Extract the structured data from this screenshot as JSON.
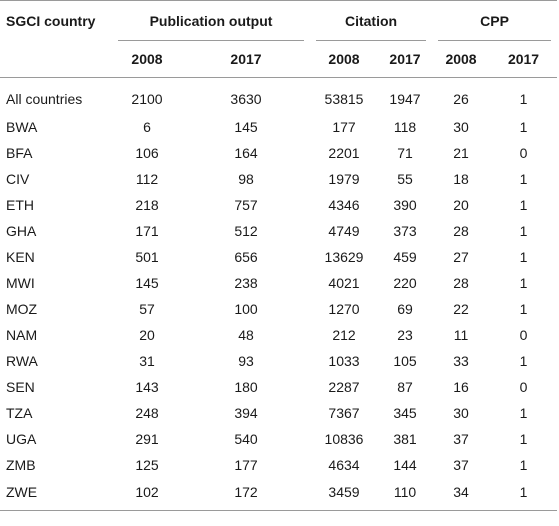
{
  "headers": {
    "country": "SGCI country",
    "groups": {
      "publication_output": "Publication output",
      "citation": "Citation",
      "cpp": "CPP"
    },
    "years": [
      "2008",
      "2017",
      "2008",
      "2017",
      "2008",
      "2017"
    ]
  },
  "rows": [
    {
      "country": "All countries",
      "pub_2008": "2100",
      "pub_2017": "3630",
      "cit_2008": "53815",
      "cit_2017": "1947",
      "cpp_2008": "26",
      "cpp_2017": "1"
    },
    {
      "country": "BWA",
      "pub_2008": "6",
      "pub_2017": "145",
      "cit_2008": "177",
      "cit_2017": "118",
      "cpp_2008": "30",
      "cpp_2017": "1"
    },
    {
      "country": "BFA",
      "pub_2008": "106",
      "pub_2017": "164",
      "cit_2008": "2201",
      "cit_2017": "71",
      "cpp_2008": "21",
      "cpp_2017": "0"
    },
    {
      "country": "CIV",
      "pub_2008": "112",
      "pub_2017": "98",
      "cit_2008": "1979",
      "cit_2017": "55",
      "cpp_2008": "18",
      "cpp_2017": "1"
    },
    {
      "country": "ETH",
      "pub_2008": "218",
      "pub_2017": "757",
      "cit_2008": "4346",
      "cit_2017": "390",
      "cpp_2008": "20",
      "cpp_2017": "1"
    },
    {
      "country": "GHA",
      "pub_2008": "171",
      "pub_2017": "512",
      "cit_2008": "4749",
      "cit_2017": "373",
      "cpp_2008": "28",
      "cpp_2017": "1"
    },
    {
      "country": "KEN",
      "pub_2008": "501",
      "pub_2017": "656",
      "cit_2008": "13629",
      "cit_2017": "459",
      "cpp_2008": "27",
      "cpp_2017": "1"
    },
    {
      "country": "MWI",
      "pub_2008": "145",
      "pub_2017": "238",
      "cit_2008": "4021",
      "cit_2017": "220",
      "cpp_2008": "28",
      "cpp_2017": "1"
    },
    {
      "country": "MOZ",
      "pub_2008": "57",
      "pub_2017": "100",
      "cit_2008": "1270",
      "cit_2017": "69",
      "cpp_2008": "22",
      "cpp_2017": "1"
    },
    {
      "country": "NAM",
      "pub_2008": "20",
      "pub_2017": "48",
      "cit_2008": "212",
      "cit_2017": "23",
      "cpp_2008": "11",
      "cpp_2017": "0"
    },
    {
      "country": "RWA",
      "pub_2008": "31",
      "pub_2017": "93",
      "cit_2008": "1033",
      "cit_2017": "105",
      "cpp_2008": "33",
      "cpp_2017": "1"
    },
    {
      "country": "SEN",
      "pub_2008": "143",
      "pub_2017": "180",
      "cit_2008": "2287",
      "cit_2017": "87",
      "cpp_2008": "16",
      "cpp_2017": "0"
    },
    {
      "country": "TZA",
      "pub_2008": "248",
      "pub_2017": "394",
      "cit_2008": "7367",
      "cit_2017": "345",
      "cpp_2008": "30",
      "cpp_2017": "1"
    },
    {
      "country": "UGA",
      "pub_2008": "291",
      "pub_2017": "540",
      "cit_2008": "10836",
      "cit_2017": "381",
      "cpp_2008": "37",
      "cpp_2017": "1"
    },
    {
      "country": "ZMB",
      "pub_2008": "125",
      "pub_2017": "177",
      "cit_2008": "4634",
      "cit_2017": "144",
      "cpp_2008": "37",
      "cpp_2017": "1"
    },
    {
      "country": "ZWE",
      "pub_2008": "102",
      "pub_2017": "172",
      "cit_2008": "3459",
      "cit_2017": "110",
      "cpp_2008": "34",
      "cpp_2017": "1"
    }
  ]
}
